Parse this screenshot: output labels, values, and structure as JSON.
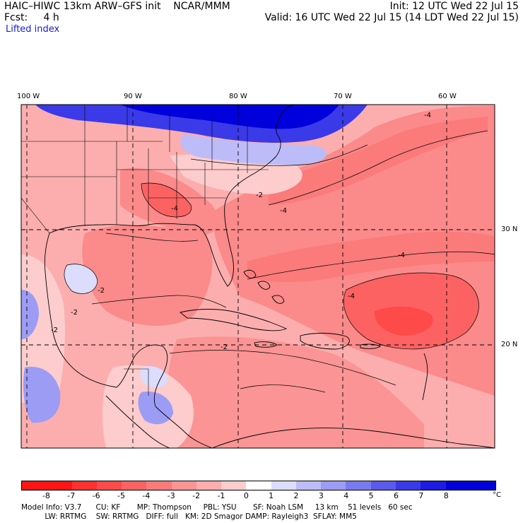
{
  "header": {
    "model_title": "HAIC–HIWC 13km ARW–GFS init    NCAR/MMM",
    "forecast": "Fcst:     4 h",
    "field": "Lifted index",
    "init": "Init: 12 UTC Wed 22 Jul 15",
    "valid": "Valid: 16 UTC Wed 22 Jul 15 (14 LDT Wed 22 Jul 15)"
  },
  "map": {
    "longitude_labels": [
      "100 W",
      "90 W",
      "80 W",
      "70 W",
      "60 W"
    ],
    "latitude_labels": [
      "30 N",
      "20 N"
    ],
    "contour_labels": [
      "-2",
      "-2",
      "-2",
      "-2",
      "-2",
      "-4",
      "-4",
      "-4",
      "-4",
      "-4"
    ]
  },
  "legend": {
    "values": [
      "-8",
      "-7",
      "-6",
      "-5",
      "-4",
      "-3",
      "-2",
      "-1",
      "0",
      "1",
      "2",
      "3",
      "4",
      "5",
      "6",
      "7",
      "8"
    ],
    "unit": "°C",
    "colors": [
      "#ff1414",
      "#ff3030",
      "#ff4a4a",
      "#fd6262",
      "#fb7a7a",
      "#fb9494",
      "#fcaeae",
      "#fdcccc",
      "#ffffff",
      "#dcdcfc",
      "#bcbcf8",
      "#9c9cf4",
      "#7a7af0",
      "#5a5aec",
      "#3a3ae8",
      "#1c1ce4",
      "#0000dc"
    ]
  },
  "model_info": {
    "line1": "Model Info: V3.7      CU: KF       MP: Thompson     PBL: YSU       SF: Noah LSM     13 km    51 levels   60 sec",
    "line2": "          LW: RRTMG    SW: RRTMG   DIFF: full   KM: 2D Smagor DAMP: Rayleigh3  SFLAY: MM5"
  }
}
